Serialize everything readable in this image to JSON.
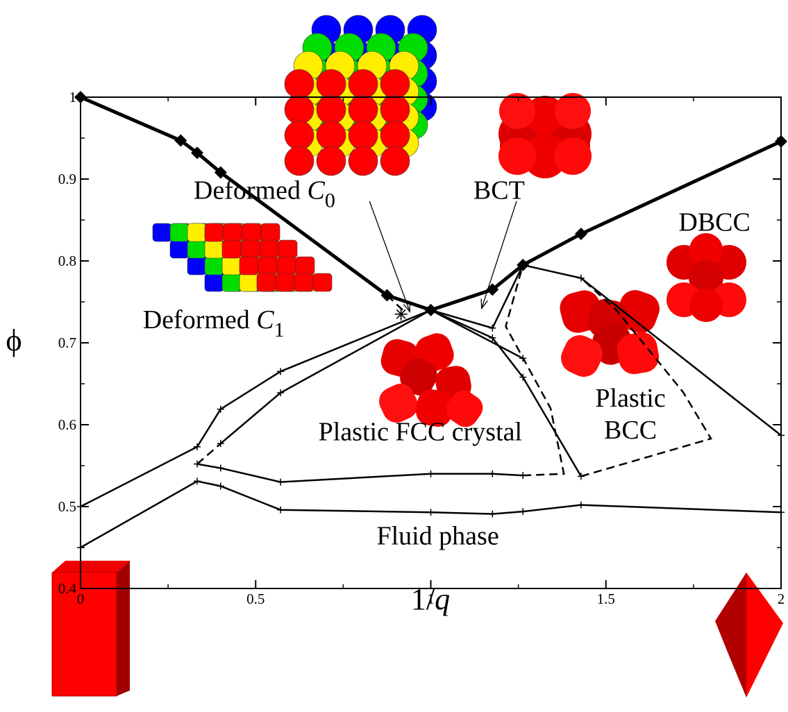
{
  "chart_data": {
    "type": "line",
    "xlabel": "1/q",
    "ylabel": "ϕ",
    "xlim": [
      0,
      2
    ],
    "ylim": [
      0.4,
      1.0
    ],
    "x_ticks": [
      0,
      0.5,
      1,
      1.5,
      2
    ],
    "x_tick_labels": [
      "0",
      "0.5",
      "1",
      "1.5",
      "2"
    ],
    "y_ticks": [
      0.4,
      0.5,
      0.6,
      0.7,
      0.8,
      0.9,
      1.0
    ],
    "y_tick_labels": [
      "0.4",
      "0.5",
      "0.6",
      "0.7",
      "0.8",
      "0.9",
      "1"
    ],
    "grid": false,
    "colors": {
      "line": "#000000",
      "particle": "#ff0000",
      "layer_blue": "#0000ff",
      "layer_green": "#00dd00",
      "layer_yellow": "#ffee00"
    },
    "series": [
      {
        "style": "thick-diamond",
        "x": [
          0,
          0.286,
          0.333,
          0.4,
          0.875,
          1.0,
          1.176,
          1.263,
          1.429,
          2.0
        ],
        "y": [
          1.0,
          0.947,
          0.932,
          0.908,
          0.758,
          0.74,
          0.765,
          0.795,
          0.833,
          0.946
        ]
      },
      {
        "style": "solid-plus",
        "x": [
          0,
          0.333,
          0.4,
          0.571,
          1.0,
          1.176,
          1.263,
          1.429,
          2.0
        ],
        "y": [
          0.5,
          0.573,
          0.619,
          0.665,
          0.74,
          0.718,
          0.795,
          0.779,
          0.587
        ]
      },
      {
        "style": "solid-plus",
        "x": [
          0.4,
          0.571,
          1.0,
          1.176,
          1.263,
          1.429
        ],
        "y": [
          0.577,
          0.639,
          0.74,
          0.706,
          0.658,
          0.537
        ]
      },
      {
        "style": "solid-plus",
        "x": [
          1.0,
          1.263
        ],
        "y": [
          0.74,
          0.681
        ]
      },
      {
        "style": "solid-plus",
        "x": [
          0.333,
          0.4,
          0.571,
          1.0,
          1.176,
          1.263
        ],
        "y": [
          0.552,
          0.547,
          0.53,
          0.54,
          0.54,
          0.538
        ]
      },
      {
        "style": "solid-plus",
        "x": [
          0,
          0.333,
          0.4,
          0.571,
          1.0,
          1.176,
          1.263,
          1.429,
          2.0
        ],
        "y": [
          0.45,
          0.531,
          0.525,
          0.496,
          0.493,
          0.491,
          0.494,
          0.502,
          0.493
        ]
      },
      {
        "style": "dashed",
        "x": [
          0.333,
          0.4
        ],
        "y": [
          0.552,
          0.577
        ]
      },
      {
        "style": "dashed",
        "x": [
          1.263,
          1.38,
          1.342,
          1.214,
          1.263
        ],
        "y": [
          0.538,
          0.54,
          0.62,
          0.72,
          0.795
        ]
      },
      {
        "style": "dashed",
        "x": [
          1.429,
          1.8,
          1.72,
          1.53,
          1.429
        ],
        "y": [
          0.537,
          0.583,
          0.64,
          0.74,
          0.779
        ]
      },
      {
        "style": "dashed",
        "x": [
          0.875,
          0.92
        ],
        "y": [
          0.758,
          0.74
        ]
      }
    ],
    "annotations": [
      {
        "text": "Deformed C",
        "subscript": "0",
        "x": 0.525,
        "y": 0.876
      },
      {
        "text": "BCT",
        "x": 1.195,
        "y": 0.876
      },
      {
        "text": "DBCC",
        "x": 1.81,
        "y": 0.837
      },
      {
        "text": "Deformed C",
        "subscript": "1",
        "x": 0.38,
        "y": 0.718
      },
      {
        "text": "Plastic",
        "x": 1.57,
        "y": 0.622
      },
      {
        "text": "BCC",
        "x": 1.57,
        "y": 0.583
      },
      {
        "text": "Plastic FCC crystal",
        "x": 0.97,
        "y": 0.581
      },
      {
        "text": "Fluid phase",
        "x": 1.02,
        "y": 0.454
      }
    ],
    "special_point": {
      "marker": "asterisk",
      "x": 0.915,
      "y": 0.735
    },
    "pointer_lines": [
      {
        "from": [
          0.825,
          0.873
        ],
        "to": [
          0.94,
          0.738
        ]
      },
      {
        "from": [
          1.245,
          0.873
        ],
        "to": [
          1.145,
          0.742
        ]
      }
    ]
  }
}
